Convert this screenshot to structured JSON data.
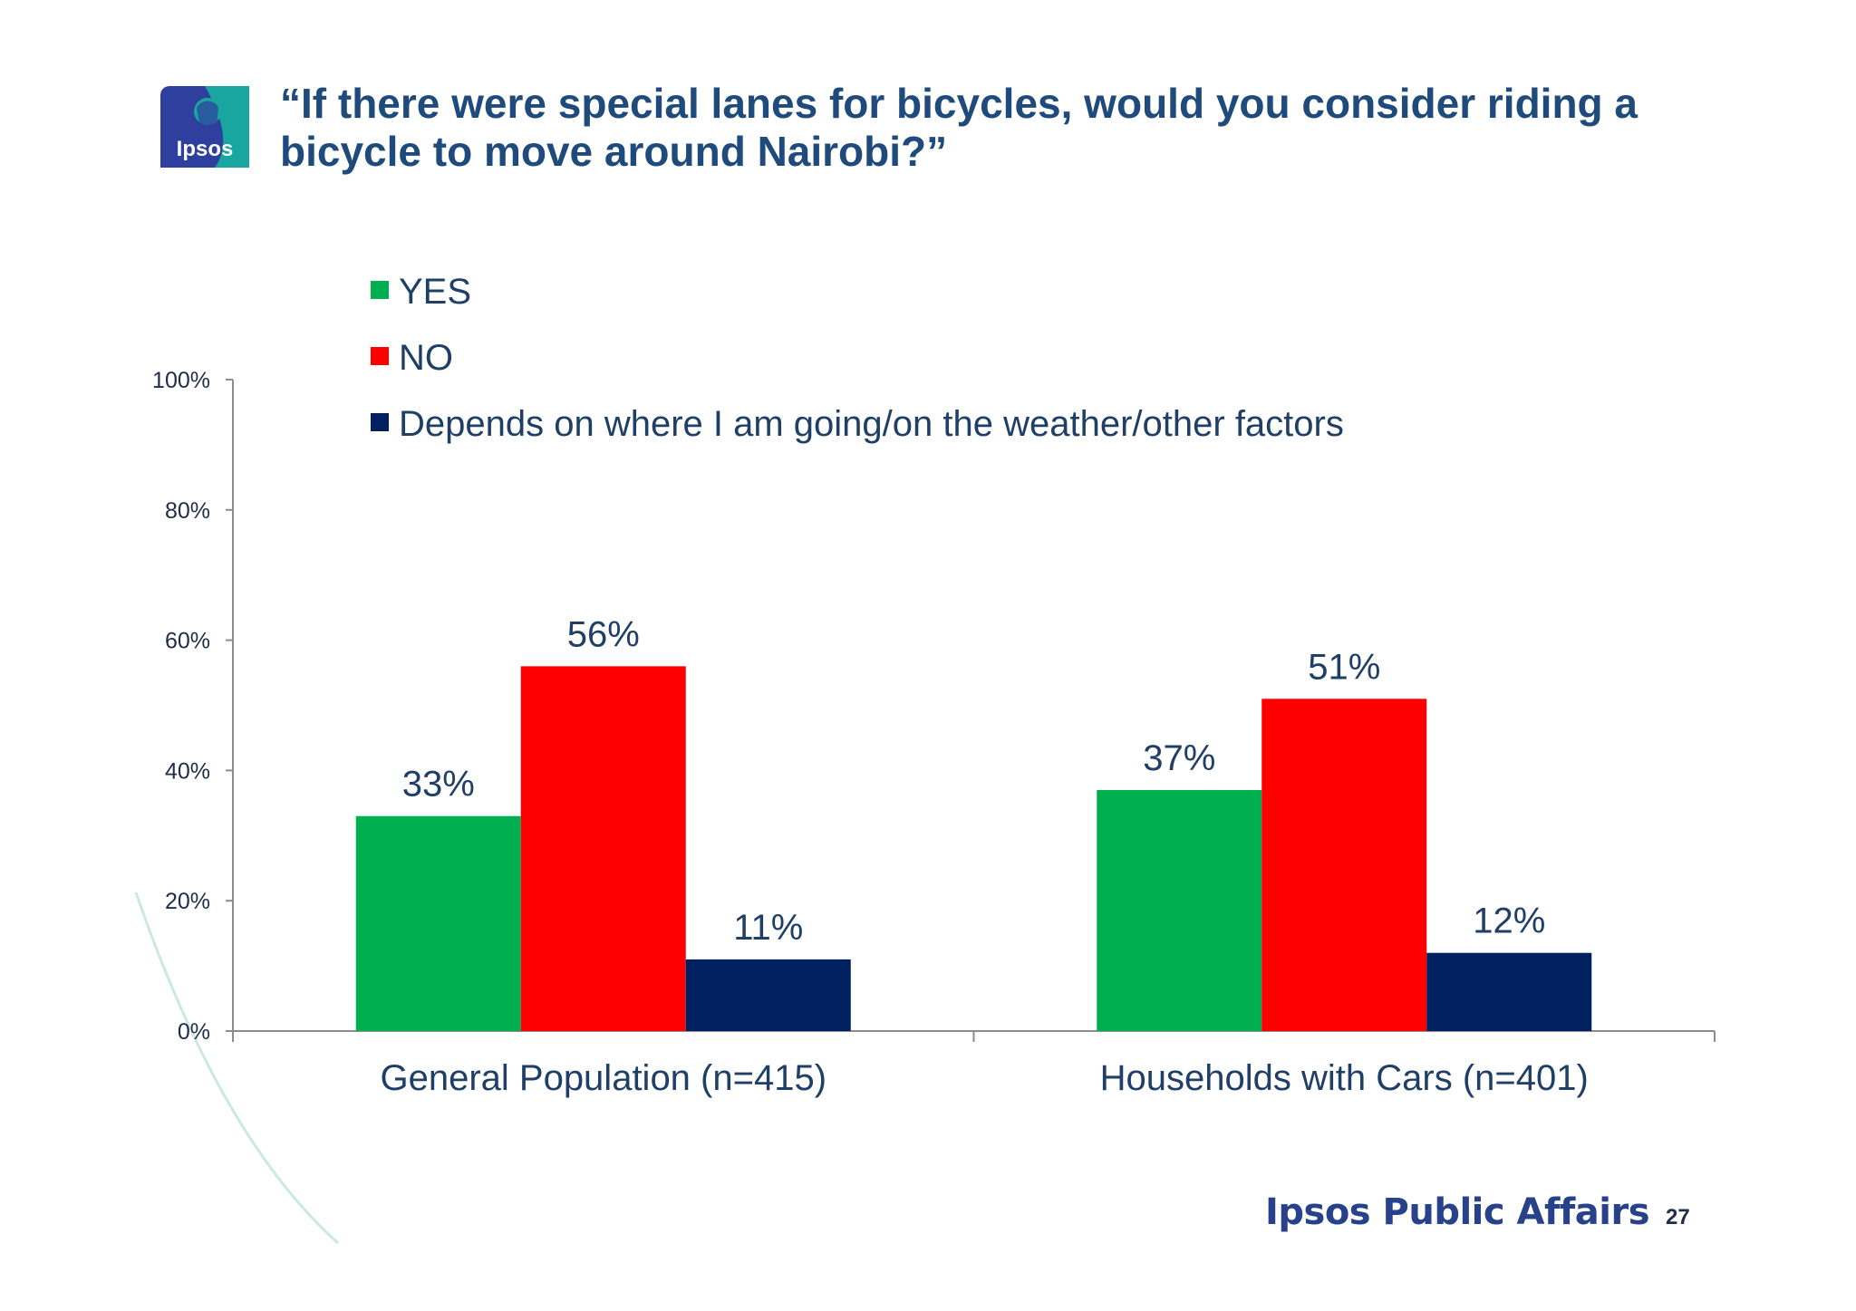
{
  "slide": {
    "title": "“If there were special lanes for bicycles, would you consider riding a bicycle to move around Nairobi?”",
    "logo_text": "Ipsos",
    "footer_brand": "Ipsos Public Affairs",
    "page_number": "27"
  },
  "colors": {
    "title": "#1f4b7c",
    "text": "#1f3f66",
    "logo_blue": "#2e3f9e",
    "logo_teal": "#1aa6a0",
    "decoration": "#cce8e1"
  },
  "chart_data": {
    "type": "bar",
    "categories": [
      "General Population (n=415)",
      "Households with Cars (n=401)"
    ],
    "series": [
      {
        "name": "YES",
        "values": [
          33,
          37
        ],
        "labels": [
          "33%",
          "37%"
        ],
        "color": "#00b050"
      },
      {
        "name": "NO",
        "values": [
          56,
          51
        ],
        "labels": [
          "56%",
          "51%"
        ],
        "color": "#ff0000"
      },
      {
        "name": "Depends on where I am going/on the weather/other factors",
        "values": [
          11,
          12
        ],
        "labels": [
          "11%",
          "12%"
        ],
        "color": "#002060"
      }
    ],
    "ylim": [
      0,
      100
    ],
    "y_ticks": [
      "0%",
      "20%",
      "40%",
      "60%",
      "80%",
      "100%"
    ],
    "legend_position": "top",
    "grid": false
  }
}
